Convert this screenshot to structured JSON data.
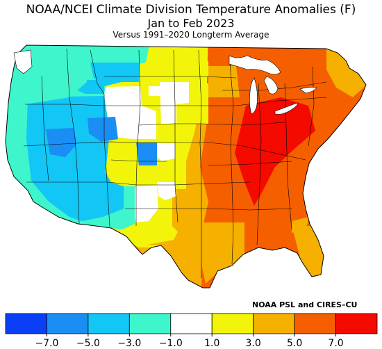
{
  "header": {
    "title": "NOAA/NCEI Climate Division Temperature Anomalies (F)",
    "period": "Jan to Feb 2023",
    "subtitle": "Versus 1991–2020 Longterm Average"
  },
  "credit": "NOAA PSL and CIRES–CU",
  "colors": {
    "bin_m9": "#0a3ff5",
    "bin_m6": "#1a8ef5",
    "bin_m4": "#12c6f5",
    "bin_m2": "#3ef5cc",
    "bin_0": "#ffffff",
    "bin_p2": "#f2f509",
    "bin_p4": "#f5b000",
    "bin_p6": "#f55f00",
    "bin_p8": "#f50a00",
    "boundary": "#000000"
  },
  "legend": {
    "bins": [
      "bin_m9",
      "bin_m6",
      "bin_m4",
      "bin_m2",
      "bin_0",
      "bin_p2",
      "bin_p4",
      "bin_p6",
      "bin_p8"
    ],
    "ticks": [
      "−7.0",
      "−5.0",
      "−3.0",
      "−1.0",
      "1.0",
      "3.0",
      "5.0",
      "7.0"
    ]
  },
  "map_regions": [
    {
      "name": "washington-oregon-coast",
      "bin": "bin_m2"
    },
    {
      "name": "washington-east",
      "bin": "bin_m2"
    },
    {
      "name": "idaho-montana-west",
      "bin": "bin_m2"
    },
    {
      "name": "montana-central",
      "bin": "bin_m4"
    },
    {
      "name": "montana-east-dakotas-west",
      "bin": "bin_p2"
    },
    {
      "name": "northern-plains-central",
      "bin": "bin_0"
    },
    {
      "name": "minnesota",
      "bin": "bin_p2"
    },
    {
      "name": "minnesota-southeast",
      "bin": "bin_p4"
    },
    {
      "name": "california-coast",
      "bin": "bin_m2"
    },
    {
      "name": "california-nevada-interior",
      "bin": "bin_m4"
    },
    {
      "name": "great-basin-core",
      "bin": "bin_m6"
    },
    {
      "name": "wyoming-core",
      "bin": "bin_m6"
    },
    {
      "name": "colorado-core",
      "bin": "bin_m6"
    },
    {
      "name": "arizona-utah-south",
      "bin": "bin_m4"
    },
    {
      "name": "southwest-lowlands",
      "bin": "bin_m2"
    },
    {
      "name": "new-mexico-east",
      "bin": "bin_0"
    },
    {
      "name": "central-plains",
      "bin": "bin_p2"
    },
    {
      "name": "central-lowlands",
      "bin": "bin_p4"
    },
    {
      "name": "mississippi-valley-south",
      "bin": "bin_p6"
    },
    {
      "name": "ohio-valley-appalachia",
      "bin": "bin_p8"
    },
    {
      "name": "great-lakes-northeast",
      "bin": "bin_p6"
    },
    {
      "name": "new-england-north",
      "bin": "bin_p4"
    },
    {
      "name": "texas-west",
      "bin": "bin_p2"
    },
    {
      "name": "texas-central-south",
      "bin": "bin_p4"
    },
    {
      "name": "gulf-coast",
      "bin": "bin_p4"
    },
    {
      "name": "southeast",
      "bin": "bin_p6"
    },
    {
      "name": "florida",
      "bin": "bin_p4"
    }
  ]
}
